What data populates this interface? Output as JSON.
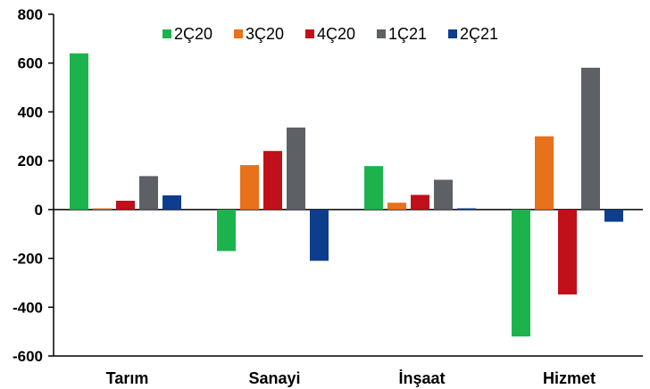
{
  "chart_data": {
    "type": "bar",
    "categories": [
      "Tarım",
      "Sanayi",
      "İnşaat",
      "Hizmet"
    ],
    "series": [
      {
        "name": "2Ç20",
        "color": "#1db34c",
        "values": [
          640,
          -170,
          178,
          -520
        ]
      },
      {
        "name": "3Ç20",
        "color": "#e8711b",
        "values": [
          5,
          182,
          28,
          300
        ]
      },
      {
        "name": "4Ç20",
        "color": "#c0101a",
        "values": [
          36,
          240,
          60,
          -348
        ]
      },
      {
        "name": "1Ç21",
        "color": "#5d6166",
        "values": [
          137,
          336,
          122,
          581
        ]
      },
      {
        "name": "2Ç21",
        "color": "#0d3d8c",
        "values": [
          58,
          -210,
          5,
          -50
        ]
      }
    ],
    "ylim": [
      -600,
      800
    ],
    "yticks": [
      -600,
      -400,
      -200,
      0,
      200,
      400,
      600,
      800
    ],
    "title": "",
    "xlabel": "",
    "ylabel": "",
    "legend_position": "top",
    "grid": false
  }
}
